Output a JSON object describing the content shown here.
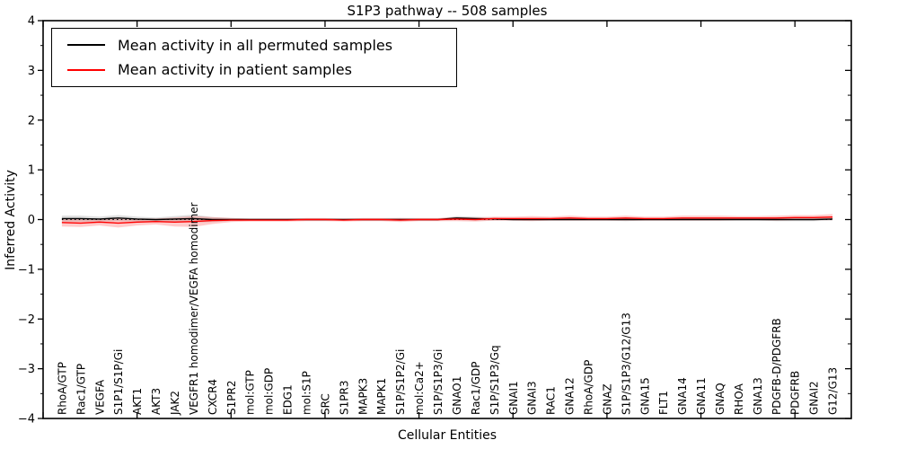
{
  "chart_data": {
    "type": "line",
    "title": "S1P3 pathway -- 508 samples",
    "xlabel": "Cellular Entities",
    "ylabel": "Inferred Activity",
    "ylim": [
      -4,
      4
    ],
    "xlim": [
      0,
      43
    ],
    "yticks": [
      4,
      3,
      2,
      1,
      0,
      -1,
      -2,
      -3,
      -4
    ],
    "ytick_labels": [
      "4",
      "3",
      "2",
      "1",
      "0",
      "−1",
      "−2",
      "−3",
      "−4"
    ],
    "y_minor_tick_step": 0.5,
    "x_major_tick_step": 5,
    "grid": false,
    "legend_position": "upper left",
    "zero_line": {
      "value": 0,
      "style": "dotted",
      "color": "#000000"
    },
    "categories": [
      "RhoA/GTP",
      "Rac1/GTP",
      "VEGFA",
      "S1P1/S1P/Gi",
      "AKT1",
      "AKT3",
      "JAK2",
      "VEGFR1 homodimer/VEGFA homodimer",
      "CXCR4",
      "S1PR2",
      "mol:GTP",
      "mol:GDP",
      "EDG1",
      "mol:S1P",
      "SRC",
      "S1PR3",
      "MAPK3",
      "MAPK1",
      "S1P/S1P2/Gi",
      "mol:Ca2+",
      "S1P/S1P3/Gi",
      "GNAO1",
      "Rac1/GDP",
      "S1P/S1P3/Gq",
      "GNAI1",
      "GNAI3",
      "RAC1",
      "GNA12",
      "RhoA/GDP",
      "GNAZ",
      "S1P/S1P3/G12/G13",
      "GNA15",
      "FLT1",
      "GNA14",
      "GNA11",
      "GNAQ",
      "RHOA",
      "GNA13",
      "PDGFB-D/PDGFRB",
      "PDGFRB",
      "GNAI2",
      "G12/G13"
    ],
    "series": [
      {
        "name": "Mean activity in all permuted samples",
        "color": "#000000",
        "band_color": "rgba(0,0,0,0.13)",
        "values": [
          0.02,
          0.02,
          0.01,
          0.03,
          0.01,
          0.0,
          0.01,
          0.02,
          0.0,
          0.0,
          0.0,
          0.0,
          0.0,
          0.0,
          0.0,
          0.0,
          0.0,
          0.0,
          0.0,
          0.0,
          0.0,
          0.03,
          0.02,
          0.01,
          0.0,
          0.0,
          0.0,
          0.0,
          0.0,
          0.0,
          0.0,
          0.0,
          0.0,
          0.0,
          0.0,
          0.0,
          0.0,
          0.0,
          0.0,
          0.0,
          0.0,
          0.01
        ],
        "band_halfwidth": [
          0.06,
          0.06,
          0.05,
          0.06,
          0.05,
          0.04,
          0.06,
          0.08,
          0.05,
          0.03,
          0.02,
          0.02,
          0.02,
          0.02,
          0.02,
          0.02,
          0.02,
          0.02,
          0.03,
          0.02,
          0.02,
          0.04,
          0.04,
          0.03,
          0.02,
          0.02,
          0.02,
          0.02,
          0.02,
          0.02,
          0.03,
          0.02,
          0.02,
          0.02,
          0.02,
          0.02,
          0.02,
          0.02,
          0.03,
          0.03,
          0.03,
          0.03
        ]
      },
      {
        "name": "Mean activity in patient samples",
        "color": "#ff0000",
        "band_color": "rgba(255,0,0,0.20)",
        "values": [
          -0.06,
          -0.07,
          -0.05,
          -0.07,
          -0.05,
          -0.04,
          -0.05,
          -0.04,
          -0.02,
          -0.01,
          -0.01,
          -0.01,
          -0.01,
          0.0,
          0.0,
          -0.01,
          0.0,
          0.0,
          -0.01,
          0.0,
          0.0,
          0.01,
          0.0,
          0.02,
          0.02,
          0.02,
          0.02,
          0.03,
          0.02,
          0.02,
          0.03,
          0.02,
          0.02,
          0.03,
          0.03,
          0.03,
          0.03,
          0.03,
          0.03,
          0.04,
          0.04,
          0.05
        ],
        "band_halfwidth": [
          0.08,
          0.08,
          0.07,
          0.09,
          0.07,
          0.06,
          0.09,
          0.11,
          0.07,
          0.04,
          0.03,
          0.03,
          0.03,
          0.03,
          0.03,
          0.03,
          0.03,
          0.03,
          0.04,
          0.03,
          0.03,
          0.04,
          0.04,
          0.04,
          0.04,
          0.05,
          0.04,
          0.05,
          0.04,
          0.04,
          0.05,
          0.04,
          0.04,
          0.05,
          0.05,
          0.05,
          0.04,
          0.04,
          0.05,
          0.05,
          0.05,
          0.06
        ]
      }
    ]
  }
}
